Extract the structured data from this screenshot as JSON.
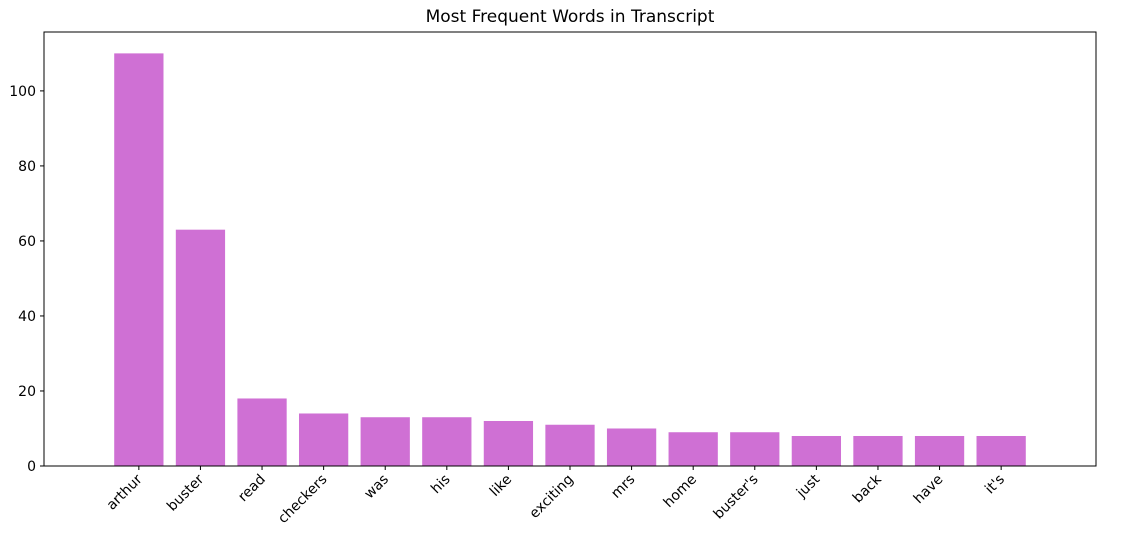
{
  "chart_data": {
    "type": "bar",
    "title": "Most Frequent Words in Transcript",
    "categories": [
      "arthur",
      "buster",
      "read",
      "checkers",
      "was",
      "his",
      "like",
      "exciting",
      "mrs",
      "home",
      "buster's",
      "just",
      "back",
      "have",
      "it's"
    ],
    "values": [
      110,
      63,
      18,
      14,
      13,
      13,
      12,
      11,
      10,
      9,
      9,
      8,
      8,
      8,
      8
    ],
    "color": "#cf70d4",
    "ylim": [
      0,
      115.7
    ],
    "yticks": [
      0,
      20,
      40,
      60,
      80,
      100
    ],
    "grid": false
  }
}
